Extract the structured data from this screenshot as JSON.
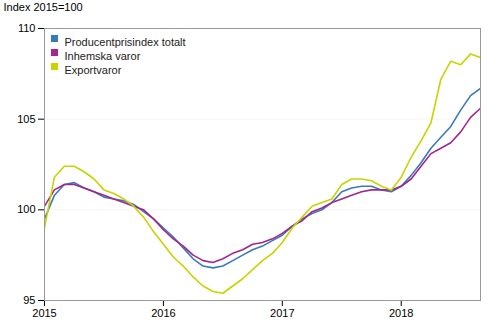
{
  "chart_data": {
    "type": "line",
    "ylabel": "Index 2015=100",
    "categories": [
      "2015",
      null,
      null,
      null,
      null,
      null,
      null,
      null,
      null,
      null,
      null,
      null,
      "2016",
      null,
      null,
      null,
      null,
      null,
      null,
      null,
      null,
      null,
      null,
      null,
      "2017",
      null,
      null,
      null,
      null,
      null,
      null,
      null,
      null,
      null,
      null,
      null,
      "2018",
      null,
      null,
      null,
      null,
      null,
      null,
      null,
      null
    ],
    "series": [
      {
        "name": "Producentprisindex totalt",
        "color": "#3a7aba",
        "values": [
          99.5,
          100.8,
          101.4,
          101.5,
          101.2,
          101.0,
          100.7,
          100.6,
          100.5,
          100.3,
          99.9,
          99.5,
          99.0,
          98.5,
          97.9,
          97.3,
          96.9,
          96.8,
          96.9,
          97.2,
          97.5,
          97.8,
          98.0,
          98.3,
          98.6,
          99.1,
          99.5,
          99.8,
          100.0,
          100.4,
          101.0,
          101.2,
          101.3,
          101.3,
          101.1,
          101.0,
          101.3,
          101.9,
          102.6,
          103.4,
          104.0,
          104.6,
          105.5,
          106.3,
          106.7
        ]
      },
      {
        "name": "Inhemska varor",
        "color": "#a0288a",
        "values": [
          100.2,
          101.1,
          101.4,
          101.4,
          101.2,
          101.0,
          100.8,
          100.6,
          100.4,
          100.2,
          100.0,
          99.5,
          98.9,
          98.4,
          98.0,
          97.5,
          97.2,
          97.1,
          97.3,
          97.6,
          97.8,
          98.1,
          98.2,
          98.4,
          98.7,
          99.1,
          99.4,
          99.9,
          100.1,
          100.4,
          100.6,
          100.8,
          101.0,
          101.1,
          101.1,
          101.1,
          101.3,
          101.7,
          102.4,
          103.1,
          103.4,
          103.7,
          104.3,
          105.1,
          105.6
        ]
      },
      {
        "name": "Exportvaror",
        "color": "#c8d400",
        "values": [
          99.0,
          101.8,
          102.4,
          102.4,
          102.1,
          101.7,
          101.1,
          100.9,
          100.6,
          100.2,
          99.6,
          98.8,
          98.1,
          97.4,
          96.9,
          96.3,
          95.8,
          95.5,
          95.4,
          95.8,
          96.2,
          96.7,
          97.2,
          97.6,
          98.2,
          99.0,
          99.6,
          100.2,
          100.4,
          100.6,
          101.4,
          101.7,
          101.7,
          101.6,
          101.3,
          101.1,
          101.8,
          102.9,
          103.8,
          104.8,
          107.2,
          108.2,
          108.0,
          108.6,
          108.4
        ]
      }
    ],
    "ylim": [
      95,
      110
    ],
    "yticks": [
      95,
      100,
      105,
      110
    ],
    "grid": true,
    "legend": "upper left"
  }
}
